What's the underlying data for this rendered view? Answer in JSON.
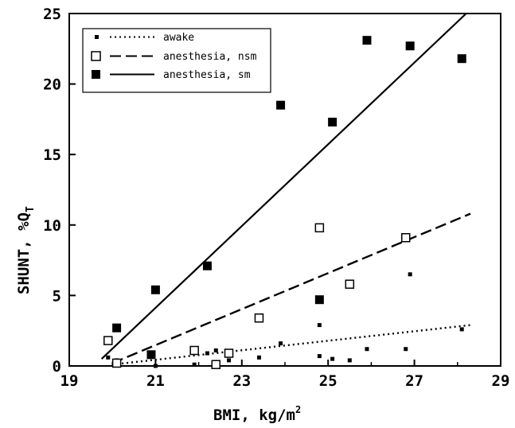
{
  "chart_data": {
    "type": "scatter",
    "title": "",
    "xlabel": "BMI, kg/m",
    "xlabel_superscript": "2",
    "ylabel": "SHUNT, %Q",
    "ylabel_subscript": "T",
    "xlim": [
      19,
      29
    ],
    "ylim": [
      0,
      25
    ],
    "xticks": [
      "19",
      "21",
      "23",
      "25",
      "27",
      "29"
    ],
    "yticks": [
      "0",
      "5",
      "10",
      "15",
      "20",
      "25"
    ],
    "grid": false,
    "legend_position": "top-left",
    "series": [
      {
        "name": "awake",
        "marker": "small-filled-square",
        "line": "dotted",
        "color": "#000000",
        "points": [
          [
            19.9,
            0.6
          ],
          [
            20.1,
            0.4
          ],
          [
            21.0,
            0.0
          ],
          [
            21.9,
            0.1
          ],
          [
            22.2,
            0.9
          ],
          [
            22.4,
            1.1
          ],
          [
            22.7,
            0.4
          ],
          [
            23.4,
            0.6
          ],
          [
            23.9,
            1.6
          ],
          [
            24.8,
            2.9
          ],
          [
            24.8,
            0.7
          ],
          [
            25.1,
            0.5
          ],
          [
            25.5,
            0.4
          ],
          [
            25.9,
            1.2
          ],
          [
            26.8,
            1.2
          ],
          [
            26.9,
            6.5
          ],
          [
            28.1,
            2.6
          ]
        ],
        "fit": [
          [
            20.0,
            0.1
          ],
          [
            28.3,
            2.9
          ]
        ]
      },
      {
        "name": "anesthesia, nsm",
        "marker": "open-square",
        "line": "dashed",
        "color": "#000000",
        "points": [
          [
            19.9,
            1.8
          ],
          [
            20.1,
            0.2
          ],
          [
            21.9,
            1.1
          ],
          [
            22.4,
            0.1
          ],
          [
            22.7,
            0.9
          ],
          [
            23.4,
            3.4
          ],
          [
            24.8,
            9.8
          ],
          [
            25.5,
            5.8
          ],
          [
            26.8,
            9.1
          ]
        ],
        "fit": [
          [
            20.0,
            0.2
          ],
          [
            28.3,
            10.8
          ]
        ]
      },
      {
        "name": "anesthesia, sm",
        "marker": "filled-square",
        "line": "solid",
        "color": "#000000",
        "points": [
          [
            20.1,
            2.7
          ],
          [
            20.9,
            0.8
          ],
          [
            21.0,
            5.4
          ],
          [
            22.2,
            7.1
          ],
          [
            23.9,
            18.5
          ],
          [
            24.8,
            4.7
          ],
          [
            25.1,
            17.3
          ],
          [
            25.9,
            23.1
          ],
          [
            26.9,
            22.7
          ],
          [
            28.1,
            21.8
          ]
        ],
        "fit": [
          [
            19.75,
            0.5
          ],
          [
            28.2,
            25.0
          ]
        ]
      }
    ]
  }
}
